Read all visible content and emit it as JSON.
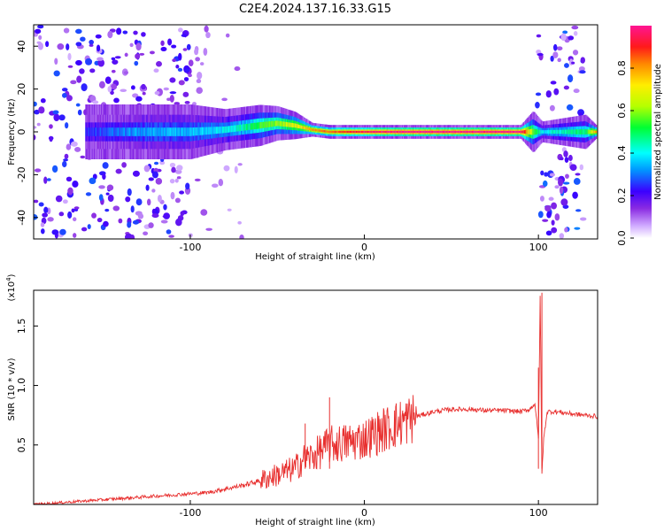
{
  "title": "C2E4.2024.137.16.33.G15",
  "chart_data": [
    {
      "type": "heatmap",
      "xlabel": "Height of straight line (km)",
      "ylabel": "Frequency (Hz)",
      "xlim": [
        -190,
        134
      ],
      "ylim": [
        -50,
        50
      ],
      "xticks": [
        -100,
        0,
        100
      ],
      "yticks": [
        -40,
        -20,
        0,
        20,
        40
      ],
      "colorbar": {
        "label": "Normalized spectral amplitude",
        "range": [
          0.0,
          1.0
        ],
        "ticks": [
          0.0,
          0.2,
          0.4,
          0.6,
          0.8
        ],
        "tick_labels": [
          "0.0",
          "0.2",
          "0.4",
          "0.6",
          "0.8"
        ],
        "colors": [
          "#ffffff",
          "#cfa8ff",
          "#8a2be2",
          "#3b00ff",
          "#0096ff",
          "#00ffff",
          "#00ff33",
          "#b5ff00",
          "#ffee00",
          "#ff8800",
          "#ff1a1a",
          "#ff1493"
        ]
      },
      "ridge": {
        "description": "Central frequency ridge near 0 Hz",
        "points": [
          [
            -160,
            0
          ],
          [
            -140,
            0
          ],
          [
            -120,
            0
          ],
          [
            -100,
            0
          ],
          [
            -80,
            1
          ],
          [
            -70,
            2
          ],
          [
            -60,
            3
          ],
          [
            -50,
            4
          ],
          [
            -40,
            3
          ],
          [
            -30,
            1
          ],
          [
            -20,
            0
          ],
          [
            -10,
            0
          ],
          [
            0,
            0
          ],
          [
            20,
            0
          ],
          [
            50,
            0
          ],
          [
            90,
            0
          ],
          [
            97,
            0
          ],
          [
            102,
            0
          ],
          [
            127,
            0
          ],
          [
            133,
            0
          ]
        ],
        "half_width_hz": [
          8,
          8,
          8,
          8,
          6,
          6,
          6,
          5,
          4,
          2,
          2,
          2,
          2,
          2,
          2,
          2,
          6,
          3,
          5,
          2
        ],
        "amplitude": [
          0.25,
          0.3,
          0.35,
          0.35,
          0.4,
          0.45,
          0.55,
          0.6,
          0.7,
          0.8,
          0.85,
          0.9,
          0.95,
          1.0,
          1.0,
          1.0,
          0.6,
          0.4,
          0.5,
          0.8
        ]
      },
      "noise_bands": [
        {
          "x_range": [
            -190,
            -100
          ],
          "level": 0.18
        },
        {
          "x_range": [
            -100,
            -70
          ],
          "level": 0.06
        },
        {
          "x_range": [
            99,
            126
          ],
          "level": 0.2
        }
      ]
    },
    {
      "type": "line",
      "xlabel": "Height of straight line (km)",
      "ylabel": "SNR (10 * v/v)",
      "y_multiplier_label": "(x10",
      "y_multiplier_exp": "4",
      "y_multiplier_close": ")",
      "xlim": [
        -190,
        134
      ],
      "ylim": [
        0,
        1.8
      ],
      "xticks": [
        -100,
        0,
        100
      ],
      "yticks": [
        0.5,
        1.0,
        1.5
      ],
      "ytick_labels": [
        "0.5",
        "1.0",
        "1.5"
      ],
      "line_color": "#e8302f",
      "series": [
        {
          "x": [
            -190,
            -170,
            -150,
            -130,
            -110,
            -100,
            -90,
            -80,
            -70,
            -60,
            -50,
            -40,
            -35,
            -30,
            -25,
            -20,
            -10,
            0,
            10,
            20,
            30,
            40,
            50,
            60,
            70,
            80,
            90,
            95,
            98,
            100,
            101,
            102,
            103,
            105,
            110,
            120,
            134
          ],
          "values": [
            0.0,
            0.02,
            0.04,
            0.06,
            0.08,
            0.09,
            0.1,
            0.13,
            0.16,
            0.2,
            0.25,
            0.3,
            0.38,
            0.4,
            0.45,
            0.5,
            0.52,
            0.55,
            0.62,
            0.68,
            0.74,
            0.78,
            0.8,
            0.8,
            0.79,
            0.79,
            0.78,
            0.8,
            0.85,
            0.55,
            1.75,
            0.25,
            0.55,
            0.78,
            0.78,
            0.76,
            0.74
          ]
        }
      ],
      "spikes": [
        {
          "x": -34,
          "value": 0.68
        },
        {
          "x": -20,
          "value": 0.9
        },
        {
          "x": 100,
          "value": 1.15
        },
        {
          "x": 102,
          "value": 1.78
        }
      ]
    }
  ]
}
